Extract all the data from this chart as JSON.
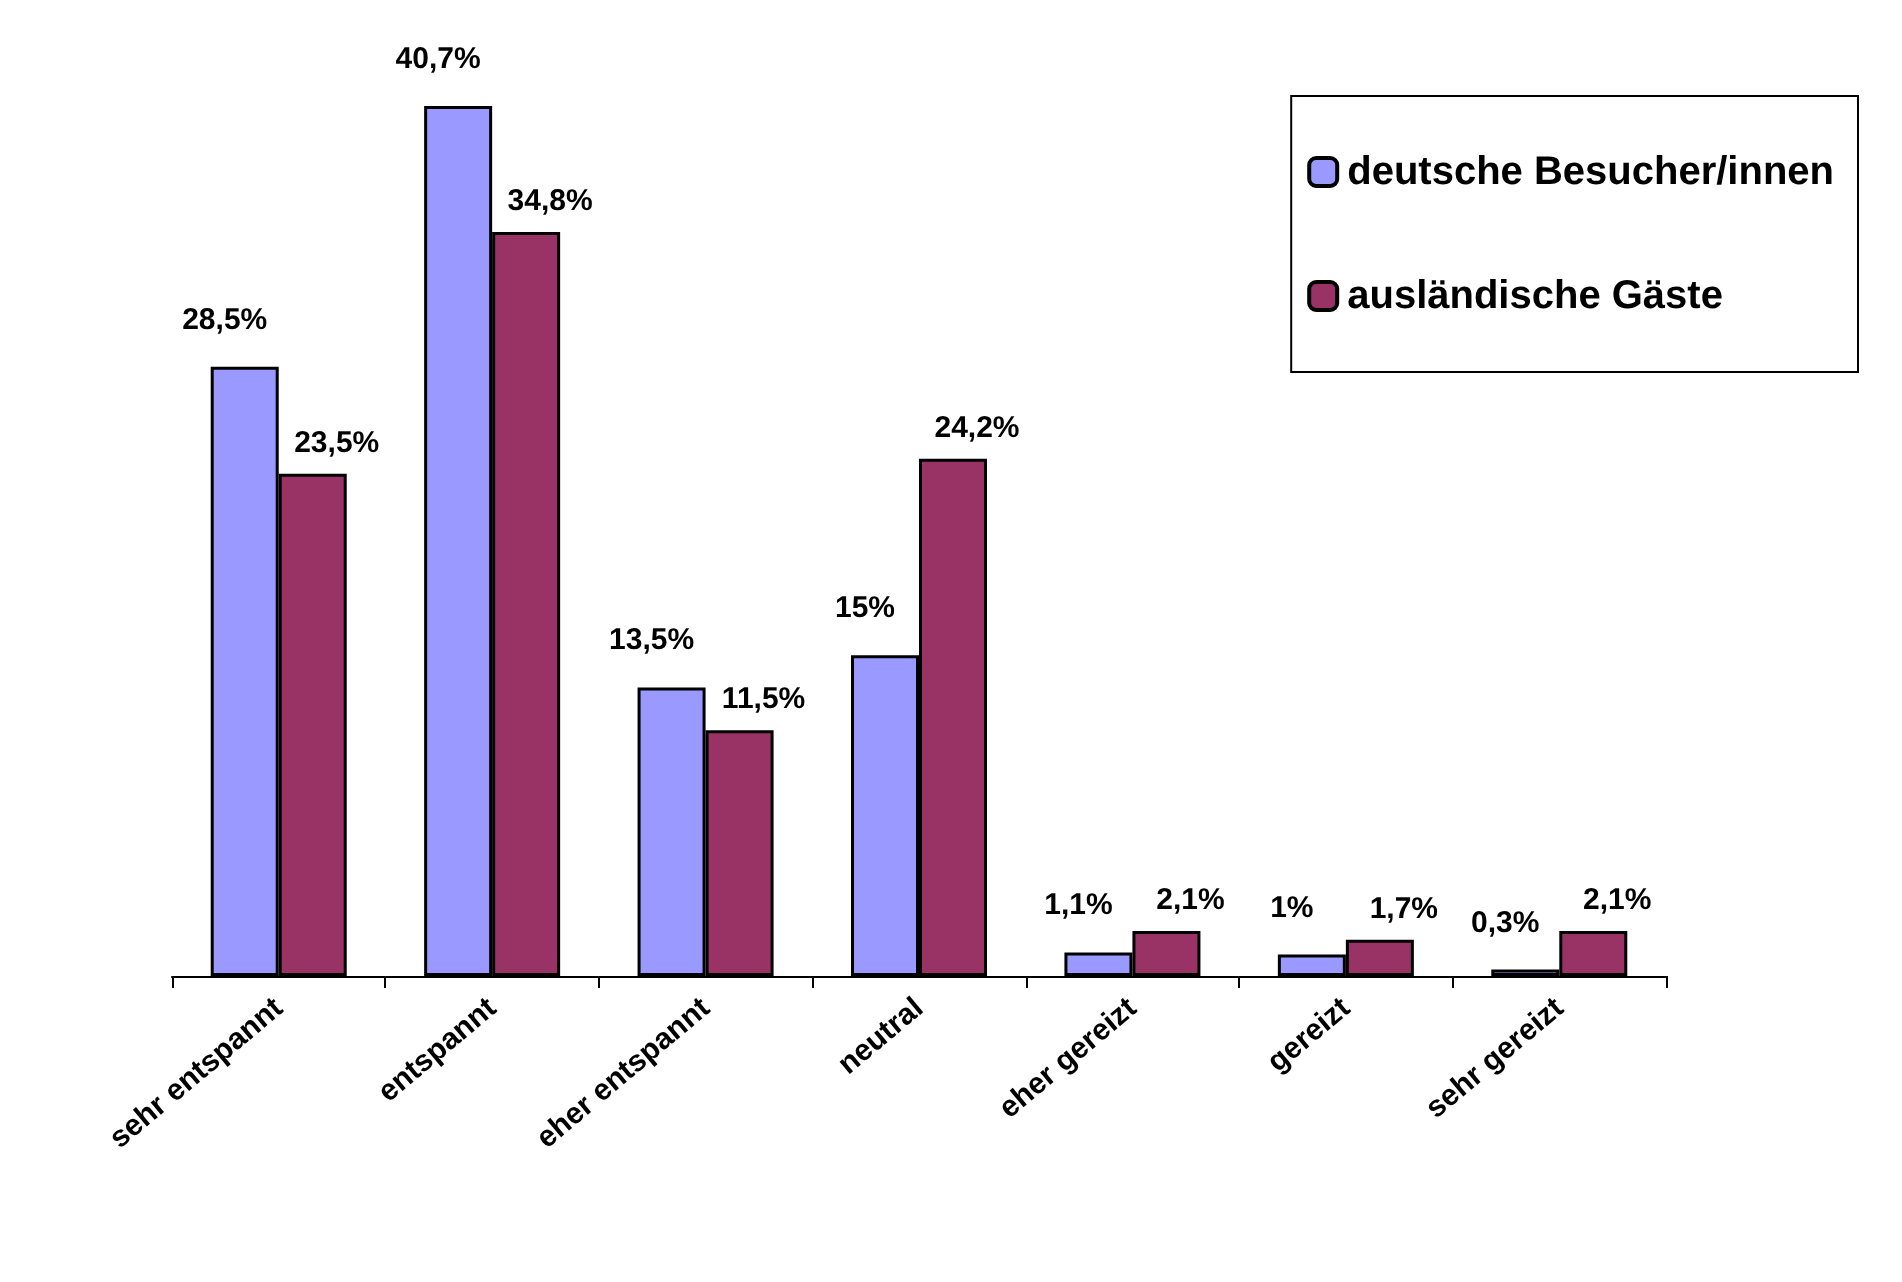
{
  "chart_data": {
    "type": "bar",
    "categories": [
      "sehr entspannt",
      "entspannt",
      "eher entspannt",
      "neutral",
      "eher gereizt",
      "gereizt",
      "sehr gereizt"
    ],
    "series": [
      {
        "name": "deutsche Besucher/innen",
        "color": "#9999ff",
        "values": [
          28.5,
          40.7,
          13.5,
          15,
          1.1,
          1,
          0.3
        ],
        "value_labels": [
          "28,5%",
          "40,7%",
          "13,5%",
          "15%",
          "1,1%",
          "1%",
          "0,3%"
        ]
      },
      {
        "name": "ausländische Gäste",
        "color": "#993366",
        "values": [
          23.5,
          34.8,
          11.5,
          24.2,
          2.1,
          1.7,
          2.1
        ],
        "value_labels": [
          "23,5%",
          "34,8%",
          "11,5%",
          "24,2%",
          "2,1%",
          "1,7%",
          "2,1%"
        ]
      }
    ],
    "legend": "top right",
    "grid": false
  }
}
